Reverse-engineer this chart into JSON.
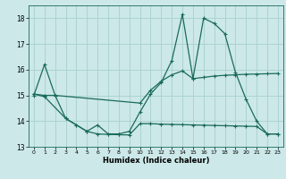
{
  "xlabel": "Humidex (Indice chaleur)",
  "bg_color": "#cce8e8",
  "grid_color": "#a8d0d0",
  "line_color": "#1a6b5a",
  "xlim": [
    -0.5,
    23.5
  ],
  "ylim": [
    13.0,
    18.5
  ],
  "yticks": [
    13,
    14,
    15,
    16,
    17,
    18
  ],
  "xticks": [
    0,
    1,
    2,
    3,
    4,
    5,
    6,
    7,
    8,
    9,
    10,
    11,
    12,
    13,
    14,
    15,
    16,
    17,
    18,
    19,
    20,
    21,
    22,
    23
  ],
  "series1_x": [
    0,
    1,
    2,
    3,
    4,
    5,
    6,
    7,
    8,
    9,
    10,
    11,
    12,
    13,
    14,
    15,
    16,
    17,
    18,
    19,
    20,
    21,
    22,
    23
  ],
  "series1_y": [
    15.0,
    16.2,
    15.0,
    14.1,
    13.85,
    13.6,
    13.85,
    13.5,
    13.5,
    13.6,
    14.35,
    15.05,
    15.5,
    16.35,
    18.15,
    15.65,
    18.0,
    17.8,
    17.4,
    15.9,
    14.85,
    14.0,
    13.5,
    13.5
  ],
  "series2_x": [
    0,
    1,
    2,
    10,
    11,
    12,
    13,
    14,
    15,
    16,
    17,
    18,
    19,
    20,
    21,
    22,
    23
  ],
  "series2_y": [
    15.05,
    15.0,
    15.0,
    14.7,
    15.2,
    15.55,
    15.8,
    15.95,
    15.65,
    15.7,
    15.75,
    15.78,
    15.8,
    15.82,
    15.83,
    15.84,
    15.85
  ],
  "series3_x": [
    0,
    1,
    3,
    4,
    5,
    6,
    7,
    8,
    9,
    10,
    11,
    12,
    13,
    14,
    15,
    16,
    17,
    18,
    19,
    20,
    21,
    22,
    23
  ],
  "series3_y": [
    15.05,
    14.95,
    14.1,
    13.85,
    13.6,
    13.5,
    13.48,
    13.47,
    13.46,
    13.9,
    13.9,
    13.88,
    13.87,
    13.86,
    13.85,
    13.84,
    13.83,
    13.82,
    13.81,
    13.8,
    13.79,
    13.5,
    13.5
  ]
}
